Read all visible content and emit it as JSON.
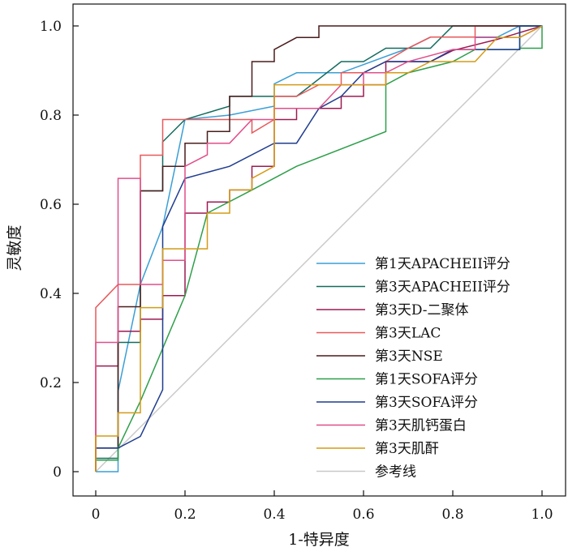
{
  "chart_data": {
    "type": "line",
    "title": "",
    "xlabel": "1-特异度",
    "ylabel": "灵敏度",
    "xlim": [
      0,
      1
    ],
    "ylim": [
      0,
      1
    ],
    "x_ticks": [
      "0",
      "0.2",
      "0.4",
      "0.6",
      "0.8",
      "1.0"
    ],
    "y_ticks": [
      "0",
      "0.2",
      "0.4",
      "0.6",
      "0.8",
      "1.0"
    ],
    "grid": false,
    "legend_position": "bottom-right",
    "series": [
      {
        "name": "第1天APACHEII评分",
        "color": "#3a9fd6",
        "points": [
          [
            0,
            0
          ],
          [
            0.05,
            0
          ],
          [
            0.05,
            0.18
          ],
          [
            0.1,
            0.42
          ],
          [
            0.15,
            0.55
          ],
          [
            0.2,
            0.79
          ],
          [
            0.3,
            0.8
          ],
          [
            0.4,
            0.82
          ],
          [
            0.4,
            0.87
          ],
          [
            0.45,
            0.895
          ],
          [
            0.55,
            0.895
          ],
          [
            0.7,
            0.95
          ],
          [
            0.75,
            0.975
          ],
          [
            0.9,
            0.975
          ],
          [
            0.95,
            1.0
          ],
          [
            1.0,
            1.0
          ]
        ]
      },
      {
        "name": "第3天APACHEII评分",
        "color": "#126b5e",
        "points": [
          [
            0,
            0
          ],
          [
            0,
            0.03
          ],
          [
            0.05,
            0.03
          ],
          [
            0.05,
            0.29
          ],
          [
            0.1,
            0.29
          ],
          [
            0.1,
            0.63
          ],
          [
            0.15,
            0.63
          ],
          [
            0.15,
            0.74
          ],
          [
            0.2,
            0.79
          ],
          [
            0.3,
            0.82
          ],
          [
            0.3,
            0.842
          ],
          [
            0.4,
            0.842
          ],
          [
            0.45,
            0.842
          ],
          [
            0.55,
            0.92
          ],
          [
            0.6,
            0.92
          ],
          [
            0.65,
            0.95
          ],
          [
            0.75,
            0.95
          ],
          [
            0.8,
            1.0
          ],
          [
            1.0,
            1.0
          ]
        ]
      },
      {
        "name": "第3天D-二聚体",
        "color": "#9c1a52",
        "points": [
          [
            0,
            0
          ],
          [
            0,
            0.237
          ],
          [
            0.05,
            0.237
          ],
          [
            0.05,
            0.315
          ],
          [
            0.1,
            0.315
          ],
          [
            0.1,
            0.342
          ],
          [
            0.15,
            0.342
          ],
          [
            0.15,
            0.395
          ],
          [
            0.2,
            0.395
          ],
          [
            0.2,
            0.58
          ],
          [
            0.25,
            0.58
          ],
          [
            0.25,
            0.605
          ],
          [
            0.3,
            0.605
          ],
          [
            0.3,
            0.632
          ],
          [
            0.35,
            0.632
          ],
          [
            0.35,
            0.685
          ],
          [
            0.4,
            0.685
          ],
          [
            0.4,
            0.79
          ],
          [
            0.45,
            0.79
          ],
          [
            0.45,
            0.815
          ],
          [
            0.55,
            0.815
          ],
          [
            0.55,
            0.842
          ],
          [
            0.6,
            0.842
          ],
          [
            0.6,
            0.868
          ],
          [
            0.65,
            0.868
          ],
          [
            0.65,
            0.92
          ],
          [
            0.7,
            0.92
          ],
          [
            0.75,
            0.92
          ],
          [
            0.8,
            0.945
          ],
          [
            0.9,
            0.97
          ],
          [
            1.0,
            1.0
          ]
        ]
      },
      {
        "name": "第3天LAC",
        "color": "#e8585a",
        "points": [
          [
            0,
            0
          ],
          [
            0,
            0.368
          ],
          [
            0.05,
            0.42
          ],
          [
            0.1,
            0.42
          ],
          [
            0.1,
            0.71
          ],
          [
            0.15,
            0.71
          ],
          [
            0.15,
            0.79
          ],
          [
            0.2,
            0.79
          ],
          [
            0.25,
            0.79
          ],
          [
            0.3,
            0.79
          ],
          [
            0.35,
            0.79
          ],
          [
            0.35,
            0.76
          ],
          [
            0.4,
            0.79
          ],
          [
            0.4,
            0.842
          ],
          [
            0.45,
            0.842
          ],
          [
            0.5,
            0.868
          ],
          [
            0.55,
            0.868
          ],
          [
            0.55,
            0.895
          ],
          [
            0.6,
            0.895
          ],
          [
            0.65,
            0.92
          ],
          [
            0.7,
            0.95
          ],
          [
            0.75,
            0.975
          ],
          [
            0.85,
            0.975
          ],
          [
            0.85,
            1.0
          ],
          [
            1.0,
            1.0
          ]
        ]
      },
      {
        "name": "第3天NSE",
        "color": "#4a1c1c",
        "points": [
          [
            0,
            0
          ],
          [
            0,
            0.053
          ],
          [
            0.05,
            0.053
          ],
          [
            0.05,
            0.37
          ],
          [
            0.1,
            0.37
          ],
          [
            0.1,
            0.63
          ],
          [
            0.15,
            0.63
          ],
          [
            0.15,
            0.685
          ],
          [
            0.2,
            0.685
          ],
          [
            0.2,
            0.737
          ],
          [
            0.25,
            0.737
          ],
          [
            0.25,
            0.763
          ],
          [
            0.3,
            0.763
          ],
          [
            0.3,
            0.842
          ],
          [
            0.35,
            0.842
          ],
          [
            0.35,
            0.92
          ],
          [
            0.4,
            0.92
          ],
          [
            0.4,
            0.947
          ],
          [
            0.45,
            0.974
          ],
          [
            0.5,
            0.974
          ],
          [
            0.5,
            1.0
          ],
          [
            1.0,
            1.0
          ]
        ]
      },
      {
        "name": "第1天SOFA评分",
        "color": "#2e9f4a",
        "points": [
          [
            0,
            0
          ],
          [
            0,
            0.026
          ],
          [
            0.05,
            0.026
          ],
          [
            0.05,
            0.053
          ],
          [
            0.1,
            0.158
          ],
          [
            0.2,
            0.395
          ],
          [
            0.25,
            0.58
          ],
          [
            0.35,
            0.632
          ],
          [
            0.45,
            0.685
          ],
          [
            0.65,
            0.763
          ],
          [
            0.65,
            0.868
          ],
          [
            0.7,
            0.895
          ],
          [
            0.8,
            0.92
          ],
          [
            0.85,
            0.947
          ],
          [
            0.95,
            0.947
          ],
          [
            0.95,
            1.0
          ],
          [
            1.0,
            1.0
          ],
          [
            1.0,
            0.95
          ],
          [
            0.95,
            0.95
          ]
        ]
      },
      {
        "name": "第3天SOFA评分",
        "color": "#1f3c8f",
        "points": [
          [
            0,
            0.053
          ],
          [
            0.05,
            0.053
          ],
          [
            0.1,
            0.079
          ],
          [
            0.15,
            0.184
          ],
          [
            0.15,
            0.55
          ],
          [
            0.2,
            0.658
          ],
          [
            0.3,
            0.685
          ],
          [
            0.4,
            0.737
          ],
          [
            0.45,
            0.737
          ],
          [
            0.5,
            0.815
          ],
          [
            0.55,
            0.842
          ],
          [
            0.6,
            0.895
          ],
          [
            0.65,
            0.92
          ],
          [
            0.75,
            0.92
          ],
          [
            0.8,
            0.947
          ],
          [
            0.95,
            0.947
          ],
          [
            0.95,
            1.0
          ],
          [
            1.0,
            1.0
          ]
        ]
      },
      {
        "name": "第3天肌钙蛋白",
        "color": "#e04f8a",
        "points": [
          [
            0,
            0
          ],
          [
            0,
            0.29
          ],
          [
            0.05,
            0.29
          ],
          [
            0.05,
            0.658
          ],
          [
            0.1,
            0.658
          ],
          [
            0.1,
            0.42
          ],
          [
            0.15,
            0.42
          ],
          [
            0.15,
            0.474
          ],
          [
            0.2,
            0.474
          ],
          [
            0.2,
            0.685
          ],
          [
            0.25,
            0.711
          ],
          [
            0.25,
            0.737
          ],
          [
            0.3,
            0.737
          ],
          [
            0.35,
            0.79
          ],
          [
            0.4,
            0.79
          ],
          [
            0.4,
            0.815
          ],
          [
            0.5,
            0.815
          ],
          [
            0.55,
            0.868
          ],
          [
            0.6,
            0.868
          ],
          [
            0.6,
            0.895
          ],
          [
            0.65,
            0.895
          ],
          [
            0.7,
            0.92
          ],
          [
            0.8,
            0.947
          ],
          [
            0.85,
            0.947
          ],
          [
            0.85,
            0.974
          ],
          [
            0.95,
            0.974
          ],
          [
            1.0,
            1.0
          ]
        ]
      },
      {
        "name": "第3天肌酐",
        "color": "#d49b16",
        "points": [
          [
            0,
            0
          ],
          [
            0,
            0.08
          ],
          [
            0.05,
            0.08
          ],
          [
            0.05,
            0.132
          ],
          [
            0.1,
            0.132
          ],
          [
            0.1,
            0.368
          ],
          [
            0.15,
            0.368
          ],
          [
            0.15,
            0.5
          ],
          [
            0.2,
            0.5
          ],
          [
            0.25,
            0.5
          ],
          [
            0.25,
            0.58
          ],
          [
            0.3,
            0.58
          ],
          [
            0.3,
            0.632
          ],
          [
            0.35,
            0.632
          ],
          [
            0.35,
            0.658
          ],
          [
            0.4,
            0.685
          ],
          [
            0.4,
            0.868
          ],
          [
            0.45,
            0.868
          ],
          [
            0.5,
            0.868
          ],
          [
            0.55,
            0.868
          ],
          [
            0.6,
            0.868
          ],
          [
            0.65,
            0.868
          ],
          [
            0.65,
            0.895
          ],
          [
            0.7,
            0.895
          ],
          [
            0.75,
            0.92
          ],
          [
            0.8,
            0.92
          ],
          [
            0.85,
            0.92
          ],
          [
            0.9,
            0.974
          ],
          [
            0.95,
            0.974
          ],
          [
            1.0,
            1.0
          ]
        ]
      },
      {
        "name": "参考线",
        "color": "#c8c8c8",
        "points": [
          [
            0,
            0
          ],
          [
            1,
            1
          ]
        ]
      }
    ]
  }
}
